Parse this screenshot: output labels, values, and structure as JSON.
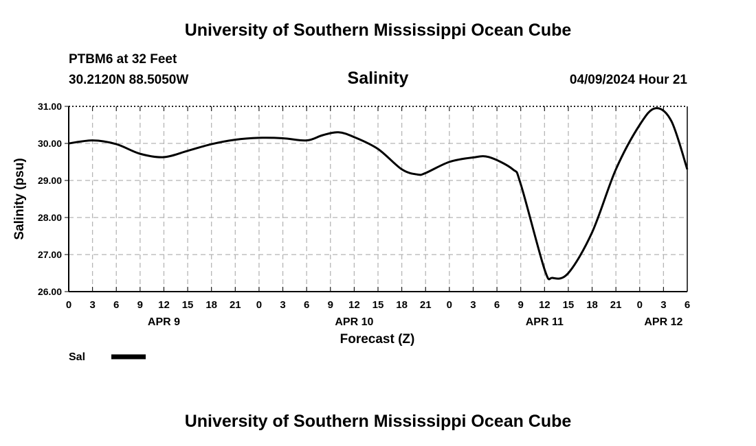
{
  "header": {
    "title": "University of Southern Mississippi Ocean Cube",
    "station": "PTBM6 at 32 Feet",
    "coordinates": "30.2120N  88.5050W",
    "parameter": "Salinity",
    "datetime": "04/09/2024 Hour 21"
  },
  "footer": {
    "title": "University of Southern Mississippi Ocean Cube"
  },
  "chart_data": {
    "type": "line",
    "ylabel": "Salinity (psu)",
    "xlabel": "Forecast (Z)",
    "ylim": [
      26.0,
      31.0
    ],
    "xlim": [
      "2024-04-09 00:00",
      "2024-04-12 06:00"
    ],
    "y_ticks": [
      "26.00",
      "27.00",
      "28.00",
      "29.00",
      "30.00",
      "31.00"
    ],
    "x_tick_labels": [
      "0",
      "3",
      "6",
      "9",
      "12",
      "15",
      "18",
      "21",
      "0",
      "3",
      "6",
      "9",
      "12",
      "15",
      "18",
      "21",
      "0",
      "3",
      "6",
      "9",
      "12",
      "15",
      "18",
      "21",
      "0",
      "3",
      "6"
    ],
    "date_labels": [
      {
        "label": "APR 9",
        "at": "2024-04-09 12:00"
      },
      {
        "label": "APR 10",
        "at": "2024-04-10 12:00"
      },
      {
        "label": "APR 11",
        "at": "2024-04-11 12:00"
      },
      {
        "label": "APR 12",
        "at": "2024-04-12 03:00"
      }
    ],
    "grid": true,
    "legend": "bottom-left",
    "series": [
      {
        "name": "Sal",
        "color": "#000000",
        "x": [
          "2024-04-09 00:00",
          "2024-04-09 03:00",
          "2024-04-09 06:00",
          "2024-04-09 09:00",
          "2024-04-09 12:00",
          "2024-04-09 15:00",
          "2024-04-09 18:00",
          "2024-04-09 21:00",
          "2024-04-10 00:00",
          "2024-04-10 03:00",
          "2024-04-10 06:00",
          "2024-04-10 08:00",
          "2024-04-10 10:00",
          "2024-04-10 12:00",
          "2024-04-10 15:00",
          "2024-04-10 18:00",
          "2024-04-10 20:00",
          "2024-04-10 21:00",
          "2024-04-11 00:00",
          "2024-04-11 03:00",
          "2024-04-11 05:00",
          "2024-04-11 08:00",
          "2024-04-11 09:00",
          "2024-04-11 12:00",
          "2024-04-11 13:00",
          "2024-04-11 15:00",
          "2024-04-11 18:00",
          "2024-04-11 21:00",
          "2024-04-12 00:00",
          "2024-04-12 02:00",
          "2024-04-12 04:00",
          "2024-04-12 06:00"
        ],
        "values": [
          30.0,
          30.08,
          29.98,
          29.72,
          29.63,
          29.8,
          29.98,
          30.1,
          30.15,
          30.14,
          30.08,
          30.22,
          30.3,
          30.17,
          29.85,
          29.3,
          29.16,
          29.2,
          29.5,
          29.62,
          29.63,
          29.3,
          28.9,
          26.6,
          26.37,
          26.5,
          27.6,
          29.3,
          30.5,
          30.95,
          30.6,
          29.3
        ]
      }
    ]
  }
}
